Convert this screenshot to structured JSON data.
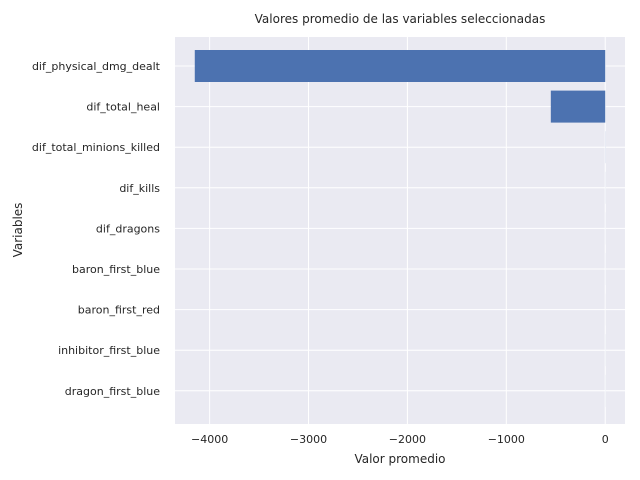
{
  "chart_data": {
    "type": "bar",
    "orientation": "horizontal",
    "title": "Valores promedio de las variables seleccionadas",
    "xlabel": "Valor promedio",
    "ylabel": "Variables",
    "categories": [
      "dif_physical_dmg_dealt",
      "dif_total_heal",
      "dif_total_minions_killed",
      "dif_kills",
      "dif_dragons",
      "baron_first_blue",
      "baron_first_red",
      "inhibitor_first_blue",
      "dragon_first_blue"
    ],
    "values": [
      -4150,
      -550,
      -1,
      -0.5,
      -0.3,
      0.3,
      0.2,
      0.4,
      0.4
    ],
    "xlim": [
      -4350,
      200
    ],
    "xticks": [
      -4000,
      -3000,
      -2000,
      -1000,
      0
    ],
    "xtick_labels": [
      "−4000",
      "−3000",
      "−2000",
      "−1000",
      "0"
    ],
    "grid": true,
    "bar_color": "#4c72b0",
    "background_color": "#eaeaf2"
  }
}
